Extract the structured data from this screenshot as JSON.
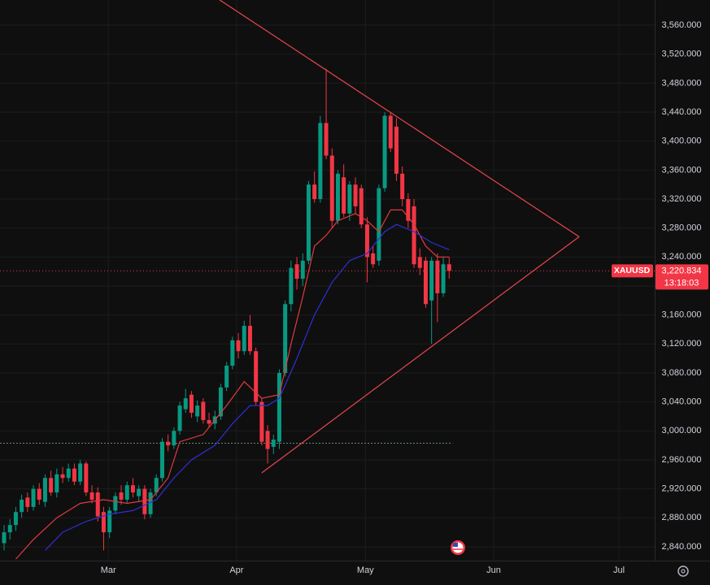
{
  "chart_data": {
    "type": "candlestick",
    "symbol": "XAUUSD",
    "countdown": "13:18:03",
    "last_price": {
      "value": 3220.834,
      "label": "3,220.834"
    },
    "up_color": "#089981",
    "down_color": "#f23645",
    "grid": true,
    "xlim": [
      -0.7,
      111.1
    ],
    "ylim": [
      2820.9,
      3594.8
    ],
    "xticks": [
      {
        "value": 17.8,
        "label": "Mar"
      },
      {
        "value": 39.7,
        "label": "Apr"
      },
      {
        "value": 61.7,
        "label": "May"
      },
      {
        "value": 83.6,
        "label": "Jun"
      },
      {
        "value": 105,
        "label": "Jul"
      }
    ],
    "yticks": [
      {
        "value": 3560,
        "label": "3,560.000"
      },
      {
        "value": 3520,
        "label": "3,520.000"
      },
      {
        "value": 3480,
        "label": "3,480.000"
      },
      {
        "value": 3440,
        "label": "3,440.000"
      },
      {
        "value": 3400,
        "label": "3,400.000"
      },
      {
        "value": 3360,
        "label": "3,360.000"
      },
      {
        "value": 3320,
        "label": "3,320.000"
      },
      {
        "value": 3280,
        "label": "3,280.000"
      },
      {
        "value": 3240,
        "label": "3,240.000"
      },
      {
        "value": 3200,
        "label": "3,200.000"
      },
      {
        "value": 3160,
        "label": "3,160.000"
      },
      {
        "value": 3120,
        "label": "3,120.000"
      },
      {
        "value": 3080,
        "label": "3,080.000"
      },
      {
        "value": 3040,
        "label": "3,040.000"
      },
      {
        "value": 3000,
        "label": "3,000.000"
      },
      {
        "value": 2960,
        "label": "2,960.000"
      },
      {
        "value": 2920,
        "label": "2,920.000"
      },
      {
        "value": 2880,
        "label": "2,880.000"
      },
      {
        "value": 2840,
        "label": "2,840.000"
      }
    ],
    "x": [
      0,
      1,
      2,
      3,
      4,
      5,
      6,
      7,
      8,
      9,
      10,
      11,
      12,
      13,
      14,
      15,
      16,
      17,
      18,
      19,
      20,
      21,
      22,
      23,
      24,
      25,
      26,
      27,
      28,
      29,
      30,
      31,
      32,
      33,
      34,
      35,
      36,
      37,
      38,
      39,
      40,
      41,
      42,
      43,
      44,
      45,
      46,
      47,
      48,
      49,
      50,
      51,
      52,
      53,
      54,
      55,
      56,
      57,
      58,
      59,
      60,
      61,
      62,
      63,
      64,
      65,
      66,
      67,
      68,
      69,
      70,
      71,
      72,
      73,
      74,
      75,
      76
    ],
    "open": [
      2845,
      2860,
      2870,
      2888,
      2908,
      2895,
      2920,
      2902,
      2935,
      2915,
      2940,
      2935,
      2948,
      2930,
      2955,
      2915,
      2915,
      2888,
      2860,
      2890,
      2915,
      2905,
      2925,
      2910,
      2920,
      2885,
      2915,
      2935,
      2985,
      2980,
      3000,
      3030,
      3050,
      3020,
      3040,
      3015,
      3010,
      3020,
      3060,
      3090,
      3125,
      3110,
      3145,
      3110,
      3040,
      3000,
      2978,
      2985,
      3080,
      3175,
      3230,
      3210,
      3235,
      3340,
      3320,
      3425,
      3380,
      3290,
      3350,
      3300,
      3340,
      3335,
      3285,
      3245,
      3235,
      3335,
      3435,
      3420,
      3355,
      3320,
      3310,
      3240,
      3235,
      3180,
      3235,
      3190,
      3230
    ],
    "high": [
      2870,
      2878,
      2895,
      2912,
      2915,
      2925,
      2928,
      2940,
      2945,
      2948,
      2950,
      2955,
      2955,
      2960,
      2958,
      2925,
      2922,
      2895,
      2895,
      2915,
      2925,
      2930,
      2935,
      2925,
      2925,
      2920,
      2940,
      2990,
      2995,
      3005,
      3040,
      3058,
      3055,
      3042,
      3045,
      3025,
      3028,
      3065,
      3095,
      3130,
      3135,
      3152,
      3160,
      3115,
      3045,
      3008,
      2995,
      3085,
      3180,
      3235,
      3240,
      3245,
      3345,
      3358,
      3435,
      3500,
      3390,
      3360,
      3368,
      3345,
      3350,
      3340,
      3295,
      3255,
      3340,
      3440,
      3440,
      3432,
      3365,
      3328,
      3320,
      3252,
      3240,
      3240,
      3245,
      3240,
      3240
    ],
    "low": [
      2835,
      2850,
      2862,
      2880,
      2888,
      2890,
      2898,
      2895,
      2910,
      2908,
      2928,
      2930,
      2925,
      2925,
      2910,
      2900,
      2875,
      2835,
      2852,
      2885,
      2898,
      2900,
      2908,
      2902,
      2878,
      2880,
      2910,
      2930,
      2972,
      2975,
      2995,
      3025,
      3018,
      3012,
      3010,
      3005,
      3002,
      3015,
      3055,
      3085,
      3100,
      3105,
      3105,
      3035,
      2980,
      2955,
      2968,
      2975,
      3075,
      3165,
      3195,
      3200,
      3230,
      3315,
      3315,
      3375,
      3280,
      3285,
      3295,
      3290,
      3300,
      3280,
      3205,
      3225,
      3228,
      3330,
      3385,
      3345,
      3310,
      3280,
      3225,
      3215,
      3170,
      3120,
      3150,
      3185,
      3210
    ],
    "close": [
      2860,
      2870,
      2888,
      2905,
      2895,
      2920,
      2905,
      2935,
      2915,
      2940,
      2935,
      2948,
      2930,
      2955,
      2915,
      2905,
      2882,
      2860,
      2890,
      2910,
      2905,
      2925,
      2915,
      2920,
      2885,
      2915,
      2935,
      2985,
      2980,
      3000,
      3035,
      3045,
      3025,
      3035,
      3015,
      3010,
      3020,
      3060,
      3090,
      3125,
      3110,
      3145,
      3110,
      3040,
      2985,
      2975,
      2988,
      3080,
      3175,
      3225,
      3210,
      3235,
      3340,
      3320,
      3425,
      3380,
      3290,
      3355,
      3300,
      3340,
      3310,
      3285,
      3240,
      3230,
      3335,
      3435,
      3390,
      3355,
      3320,
      3290,
      3230,
      3225,
      3175,
      3235,
      3190,
      3230,
      3220.834
    ],
    "moving_averages": [
      {
        "color": "#e03a3e",
        "x": [
          2,
          5,
          9,
          13,
          17,
          21,
          25,
          28,
          30,
          34,
          38,
          41,
          44,
          47,
          49,
          51,
          53,
          55,
          57,
          60,
          62,
          64,
          66,
          68,
          70,
          72,
          74,
          76
        ],
        "values": [
          2823,
          2850,
          2880,
          2900,
          2905,
          2900,
          2905,
          2935,
          2985,
          2995,
          3035,
          3068,
          3045,
          3050,
          3120,
          3185,
          3255,
          3270,
          3290,
          3300,
          3290,
          3275,
          3305,
          3305,
          3285,
          3255,
          3240,
          3240
        ]
      },
      {
        "color": "#2f2fd6",
        "x": [
          7,
          10,
          14,
          18,
          22,
          26,
          29,
          32,
          36,
          39,
          42,
          45,
          47,
          50,
          53,
          56,
          59,
          62,
          65,
          67,
          70,
          73,
          76
        ],
        "values": [
          2835,
          2860,
          2875,
          2885,
          2890,
          2905,
          2935,
          2960,
          2980,
          3010,
          3035,
          3035,
          3045,
          3100,
          3160,
          3205,
          3235,
          3245,
          3275,
          3285,
          3275,
          3260,
          3250
        ]
      }
    ],
    "trendlines": [
      {
        "color": "#e8454f",
        "x": [
          36.8,
          98.2
        ],
        "values": [
          3595,
          3268
        ]
      },
      {
        "color": "#e8454f",
        "x": [
          44,
          98.2
        ],
        "values": [
          2942,
          3268
        ]
      }
    ],
    "level": 2983
  }
}
